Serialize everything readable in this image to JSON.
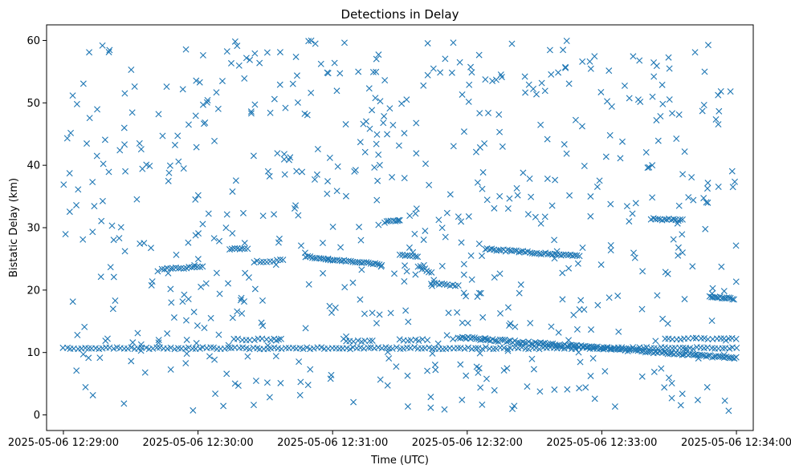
{
  "chart_data": {
    "type": "scatter",
    "title": "Detections in Delay",
    "xlabel": "Time (UTC)",
    "ylabel": "Bistatic Delay (km)",
    "x_unit": "seconds since 2025-05-06 12:29:00",
    "xlim": [
      -7.5,
      307.5
    ],
    "ylim": [
      -2.5,
      62.5
    ],
    "x_ticks": [
      {
        "value": 0,
        "label": "2025-05-06 12:29:00"
      },
      {
        "value": 60,
        "label": "2025-05-06 12:30:00"
      },
      {
        "value": 120,
        "label": "2025-05-06 12:31:00"
      },
      {
        "value": 180,
        "label": "2025-05-06 12:32:00"
      },
      {
        "value": 240,
        "label": "2025-05-06 12:33:00"
      },
      {
        "value": 300,
        "label": "2025-05-06 12:34:00"
      }
    ],
    "y_ticks": [
      {
        "value": 0,
        "label": "0"
      },
      {
        "value": 10,
        "label": "10"
      },
      {
        "value": 20,
        "label": "20"
      },
      {
        "value": 30,
        "label": "30"
      },
      {
        "value": 40,
        "label": "40"
      },
      {
        "value": 50,
        "label": "50"
      },
      {
        "value": 60,
        "label": "60"
      }
    ],
    "grid": false,
    "legend": "none",
    "marker": "x",
    "color": "#1f77b4",
    "series": [
      {
        "name": "Detections",
        "tracks": [
          {
            "name": "constant-track",
            "x_start": 0,
            "x_end": 300,
            "y_start": 10.7,
            "y_end": 10.7,
            "step": 1.6,
            "jitter": 0.15
          },
          {
            "name": "track-a",
            "x_start": 44,
            "x_end": 62,
            "y_start": 23.4,
            "y_end": 23.7,
            "step": 1.2,
            "jitter": 0.12
          },
          {
            "name": "track-b",
            "x_start": 74,
            "x_end": 82,
            "y_start": 26.6,
            "y_end": 26.6,
            "step": 1.2,
            "jitter": 0.1
          },
          {
            "name": "track-c",
            "x_start": 85,
            "x_end": 98,
            "y_start": 24.5,
            "y_end": 24.8,
            "step": 1.4,
            "jitter": 0.15
          },
          {
            "name": "track-d",
            "x_start": 108,
            "x_end": 118,
            "y_start": 25.4,
            "y_end": 24.9,
            "step": 1.0,
            "jitter": 0.12
          },
          {
            "name": "track-e",
            "x_start": 118,
            "x_end": 142,
            "y_start": 24.9,
            "y_end": 24.1,
            "step": 1.0,
            "jitter": 0.15
          },
          {
            "name": "track-f",
            "x_start": 144,
            "x_end": 150,
            "y_start": 31.1,
            "y_end": 31.1,
            "step": 1.0,
            "jitter": 0.1
          },
          {
            "name": "track-g",
            "x_start": 150,
            "x_end": 158,
            "y_start": 25.6,
            "y_end": 25.3,
            "step": 1.2,
            "jitter": 0.1
          },
          {
            "name": "track-h",
            "x_start": 158,
            "x_end": 164,
            "y_start": 23.8,
            "y_end": 22.8,
            "step": 1.0,
            "jitter": 0.2
          },
          {
            "name": "track-i",
            "x_start": 164,
            "x_end": 176,
            "y_start": 21.1,
            "y_end": 20.7,
            "step": 1.2,
            "jitter": 0.12
          },
          {
            "name": "track-j",
            "x_start": 188,
            "x_end": 230,
            "y_start": 26.6,
            "y_end": 25.4,
            "step": 1.0,
            "jitter": 0.15
          },
          {
            "name": "track-k",
            "x_start": 262,
            "x_end": 276,
            "y_start": 31.4,
            "y_end": 31.2,
            "step": 1.0,
            "jitter": 0.15
          },
          {
            "name": "track-l",
            "x_start": 288,
            "x_end": 299,
            "y_start": 19.0,
            "y_end": 18.6,
            "step": 0.8,
            "jitter": 0.12
          },
          {
            "name": "descending-track",
            "x_start": 176,
            "x_end": 300,
            "y_start": 12.4,
            "y_end": 9.1,
            "step": 0.9,
            "jitter": 0.18
          },
          {
            "name": "upper-band",
            "x_start": 76,
            "x_end": 96,
            "y_start": 12.1,
            "y_end": 12.1,
            "step": 1.8,
            "jitter": 0.12
          },
          {
            "name": "upper-band-2",
            "x_start": 126,
            "x_end": 138,
            "y_start": 11.8,
            "y_end": 11.8,
            "step": 1.8,
            "jitter": 0.12
          },
          {
            "name": "upper-band-3",
            "x_start": 150,
            "x_end": 162,
            "y_start": 12.0,
            "y_end": 12.0,
            "step": 1.8,
            "jitter": 0.12
          },
          {
            "name": "upper-band-4",
            "x_start": 268,
            "x_end": 300,
            "y_start": 12.2,
            "y_end": 12.2,
            "step": 1.8,
            "jitter": 0.12
          }
        ],
        "clutter": {
          "count": 640,
          "x_range": [
            0,
            300
          ],
          "y_range": [
            0.5,
            60
          ],
          "seed": 20250506
        }
      }
    ]
  }
}
